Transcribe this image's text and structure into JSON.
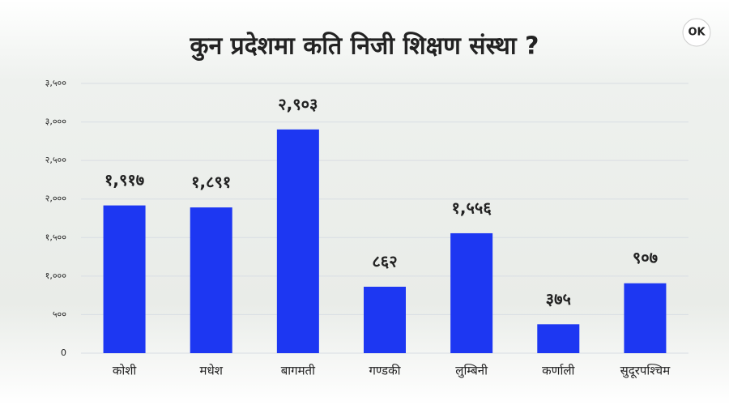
{
  "chart_data": {
    "type": "bar",
    "title": "कुन प्रदेशमा कति निजी शिक्षण संस्था ?",
    "logo": "OK",
    "categories": [
      "कोशी",
      "मधेश",
      "बागमती",
      "गण्डकी",
      "लुम्बिनी",
      "कर्णाली",
      "सुदूरपश्चिम"
    ],
    "values": [
      1917,
      1891,
      2903,
      862,
      1556,
      375,
      907
    ],
    "value_labels": [
      "१,९१७",
      "१,८९१",
      "२,९०३",
      "८६२",
      "१,५५६",
      "३७५",
      "९०७"
    ],
    "color": "#1d37f2",
    "ylim": [
      0,
      3500
    ],
    "yticks": [
      0,
      {
        "value": 500,
        "label": "५००"
      },
      {
        "value": 1000,
        "label": "१,०००"
      },
      {
        "value": 1500,
        "label": "१,५००"
      },
      {
        "value": 2000,
        "label": "२,०००"
      },
      {
        "value": 2500,
        "label": "२,५००"
      },
      {
        "value": 3000,
        "label": "३,०००"
      },
      {
        "value": 3500,
        "label": "३,५००"
      }
    ],
    "grid": true
  }
}
